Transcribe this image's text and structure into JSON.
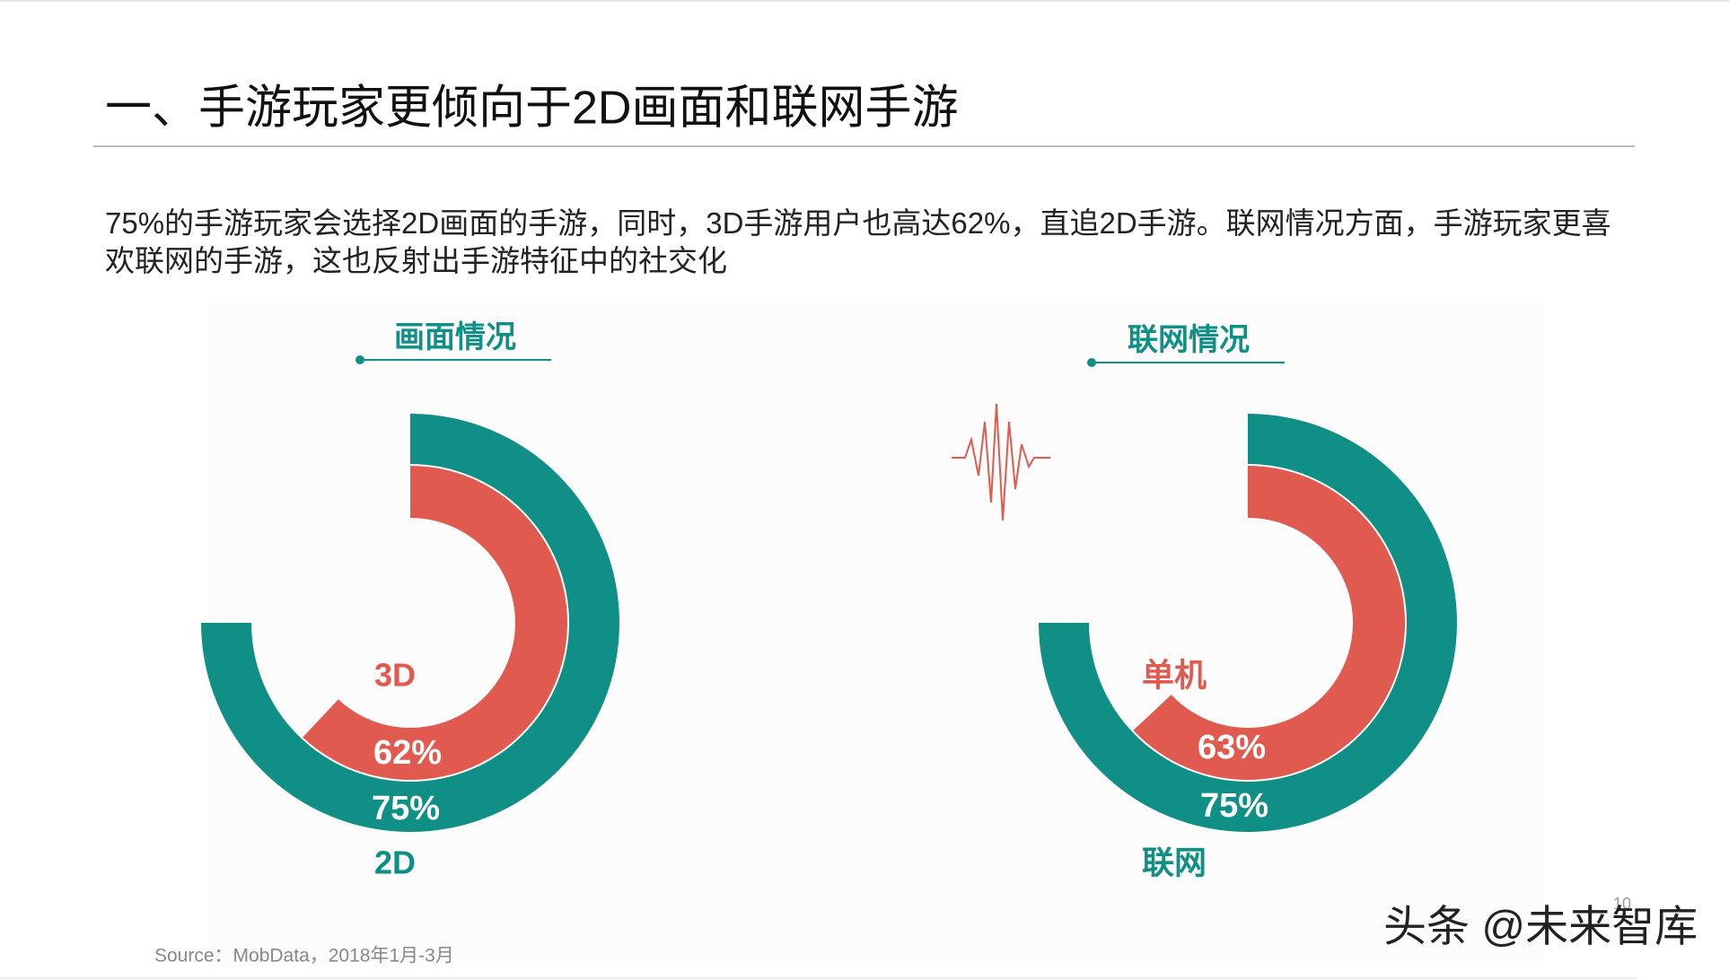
{
  "title": "一、手游玩家更倾向于2D画面和联网手游",
  "description": "75%的手游玩家会选择2D画面的手游，同时，3D手游用户也高达62%，直追2D手游。联网情况方面，手游玩家更喜欢联网的手游，这也反射出手游特征中的社交化",
  "chart_data": [
    {
      "type": "radial-bar",
      "title": "画面情况",
      "ylim": [
        0,
        100
      ],
      "series": [
        {
          "name": "2D",
          "color": "#0f8f85",
          "values": [
            75
          ],
          "value_labels": [
            "75%"
          ]
        },
        {
          "name": "3D",
          "color": "#e05a4f",
          "values": [
            62
          ],
          "value_labels": [
            "62%"
          ]
        }
      ]
    },
    {
      "type": "radial-bar",
      "title": "联网情况",
      "ylim": [
        0,
        100
      ],
      "series": [
        {
          "name": "联网",
          "color": "#0f8f85",
          "values": [
            75
          ],
          "value_labels": [
            "75%"
          ]
        },
        {
          "name": "单机",
          "color": "#e05a4f",
          "values": [
            63
          ],
          "value_labels": [
            "63%"
          ]
        }
      ]
    }
  ],
  "source": "Source：MobData，2018年1月-3月",
  "page_number": "10",
  "watermark": "头条 @未来智库"
}
